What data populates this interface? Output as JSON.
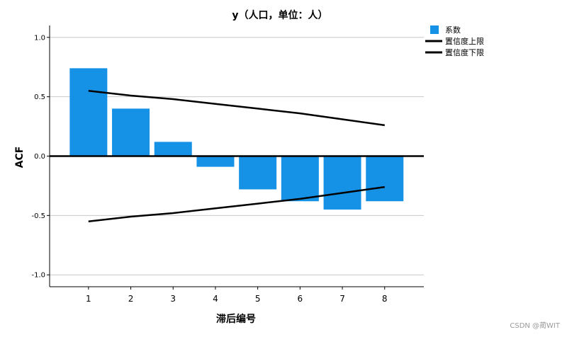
{
  "chart_data": {
    "type": "bar",
    "title": "y（人口，单位：人）",
    "xlabel": "滞后编号",
    "ylabel": "ACF",
    "categories": [
      "1",
      "2",
      "3",
      "4",
      "5",
      "6",
      "7",
      "8"
    ],
    "series": [
      {
        "name": "系数",
        "values": [
          0.74,
          0.4,
          0.12,
          -0.09,
          -0.28,
          -0.38,
          -0.45,
          -0.38
        ]
      }
    ],
    "upper_limit": {
      "name": "置信度上限",
      "values": [
        0.55,
        0.51,
        0.48,
        0.44,
        0.4,
        0.36,
        0.31,
        0.26
      ]
    },
    "lower_limit": {
      "name": "置信度下限",
      "values": [
        -0.55,
        -0.51,
        -0.48,
        -0.44,
        -0.4,
        -0.36,
        -0.31,
        -0.26
      ]
    },
    "ylim": [
      -1.1,
      1.1
    ],
    "yticks": [
      "1.0",
      "0.5",
      "0.0",
      "-0.5",
      "-1.0"
    ],
    "grid": true,
    "legend_position": "top-right",
    "colors": {
      "bar": "#1592e6",
      "limit_line": "#000000",
      "grid": "#c8c8c8"
    }
  },
  "watermark": "CSDN @蔺WIT"
}
